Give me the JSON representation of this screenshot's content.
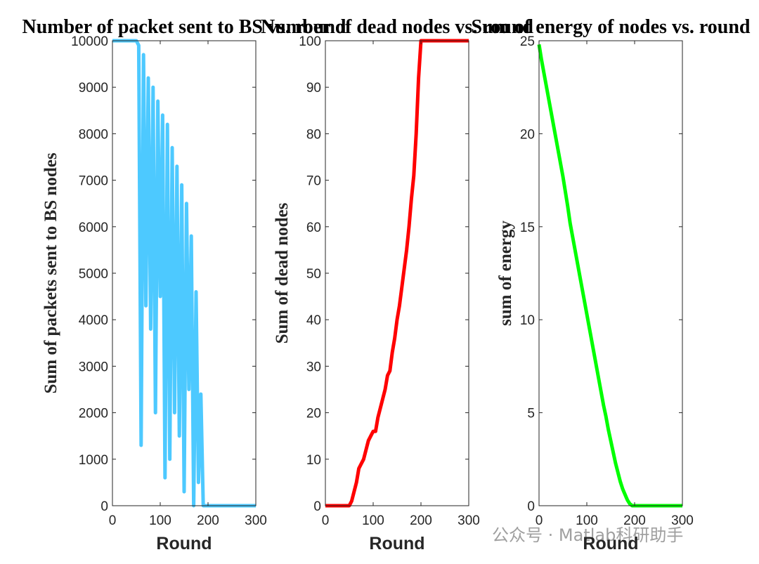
{
  "chart_data": [
    {
      "type": "line",
      "title": "Number of packet sent to BS vs. round",
      "xlabel": "Round",
      "ylabel": "Sum of packets sent to BS nodes",
      "x": [
        0,
        5,
        10,
        15,
        20,
        25,
        30,
        35,
        40,
        45,
        50,
        55,
        60,
        65,
        70,
        75,
        80,
        85,
        90,
        95,
        100,
        105,
        110,
        115,
        120,
        125,
        130,
        135,
        140,
        145,
        150,
        155,
        160,
        165,
        170,
        175,
        180,
        185,
        190,
        195,
        200,
        205,
        210,
        215,
        220,
        225,
        230,
        235,
        240,
        245,
        250,
        255,
        260,
        265,
        270,
        275,
        280,
        285,
        290,
        295,
        300
      ],
      "series": [
        {
          "color": "#4dc9ff",
          "values": [
            10000,
            10000,
            10000,
            10000,
            10000,
            10000,
            10000,
            10000,
            10000,
            10000,
            10000,
            9900,
            1300,
            9700,
            4300,
            9200,
            3800,
            9000,
            2000,
            8700,
            4500,
            8400,
            600,
            8200,
            1000,
            7700,
            2000,
            7300,
            1500,
            6900,
            300,
            6500,
            2500,
            5800,
            0,
            4600,
            500,
            2400,
            0,
            0,
            0,
            0,
            0,
            0,
            0,
            0,
            0,
            0,
            0,
            0,
            0,
            0,
            0,
            0,
            0,
            0,
            0,
            0,
            0,
            0,
            0
          ]
        }
      ],
      "xlim": [
        0,
        300
      ],
      "xticks": [
        0,
        100,
        200,
        300
      ],
      "ylim": [
        0,
        10000
      ],
      "yticks": [
        0,
        1000,
        2000,
        3000,
        4000,
        5000,
        6000,
        7000,
        8000,
        9000,
        10000
      ]
    },
    {
      "type": "line",
      "title": "Number of dead nodes vs. round",
      "xlabel": "Round",
      "ylabel": "Sum of dead nodes",
      "x": [
        0,
        5,
        10,
        15,
        20,
        25,
        30,
        35,
        40,
        45,
        50,
        55,
        60,
        65,
        70,
        75,
        80,
        85,
        90,
        95,
        100,
        105,
        110,
        115,
        120,
        125,
        130,
        135,
        140,
        145,
        150,
        155,
        160,
        165,
        170,
        175,
        180,
        185,
        190,
        195,
        200,
        205,
        210,
        215,
        220,
        225,
        230,
        235,
        240,
        245,
        250,
        255,
        260,
        265,
        270,
        275,
        280,
        285,
        290,
        295,
        300
      ],
      "series": [
        {
          "color": "#ff0000",
          "values": [
            0,
            0,
            0,
            0,
            0,
            0,
            0,
            0,
            0,
            0,
            0,
            1,
            3,
            5,
            8,
            9,
            10,
            12,
            14,
            15,
            16,
            16,
            19,
            21,
            23,
            25,
            28,
            29,
            33,
            36,
            40,
            43,
            47,
            51,
            55,
            60,
            66,
            71,
            80,
            92,
            100,
            100,
            100,
            100,
            100,
            100,
            100,
            100,
            100,
            100,
            100,
            100,
            100,
            100,
            100,
            100,
            100,
            100,
            100,
            100,
            100
          ]
        }
      ],
      "xlim": [
        0,
        300
      ],
      "xticks": [
        0,
        100,
        200,
        300
      ],
      "ylim": [
        0,
        100
      ],
      "yticks": [
        0,
        10,
        20,
        30,
        40,
        50,
        60,
        70,
        80,
        90,
        100
      ]
    },
    {
      "type": "line",
      "title": "Sum of energy of nodes vs. round",
      "xlabel": "Round",
      "ylabel": "sum of energy",
      "x": [
        0,
        5,
        10,
        15,
        20,
        25,
        30,
        35,
        40,
        45,
        50,
        55,
        60,
        65,
        70,
        75,
        80,
        85,
        90,
        95,
        100,
        105,
        110,
        115,
        120,
        125,
        130,
        135,
        140,
        145,
        150,
        155,
        160,
        165,
        170,
        175,
        180,
        185,
        190,
        195,
        200,
        205,
        210,
        215,
        220,
        225,
        230,
        235,
        240,
        245,
        250,
        255,
        260,
        265,
        270,
        275,
        280,
        285,
        290,
        295,
        300
      ],
      "series": [
        {
          "color": "#00ff00",
          "values": [
            24.8,
            24.0,
            23.3,
            22.6,
            21.9,
            21.2,
            20.5,
            19.8,
            19.1,
            18.4,
            17.7,
            16.9,
            16.1,
            15.2,
            14.5,
            13.8,
            13.1,
            12.4,
            11.7,
            11.0,
            10.3,
            9.6,
            8.9,
            8.2,
            7.5,
            6.8,
            6.1,
            5.4,
            4.8,
            4.1,
            3.5,
            2.9,
            2.3,
            1.8,
            1.3,
            0.9,
            0.6,
            0.3,
            0.1,
            0,
            0,
            0,
            0,
            0,
            0,
            0,
            0,
            0,
            0,
            0,
            0,
            0,
            0,
            0,
            0,
            0,
            0,
            0,
            0,
            0,
            0
          ]
        }
      ],
      "xlim": [
        0,
        300
      ],
      "xticks": [
        0,
        100,
        200,
        300
      ],
      "ylim": [
        0,
        25
      ],
      "yticks": [
        0,
        5,
        10,
        15,
        20,
        25
      ]
    }
  ],
  "watermark": "公众号 · Matlab科研助手"
}
